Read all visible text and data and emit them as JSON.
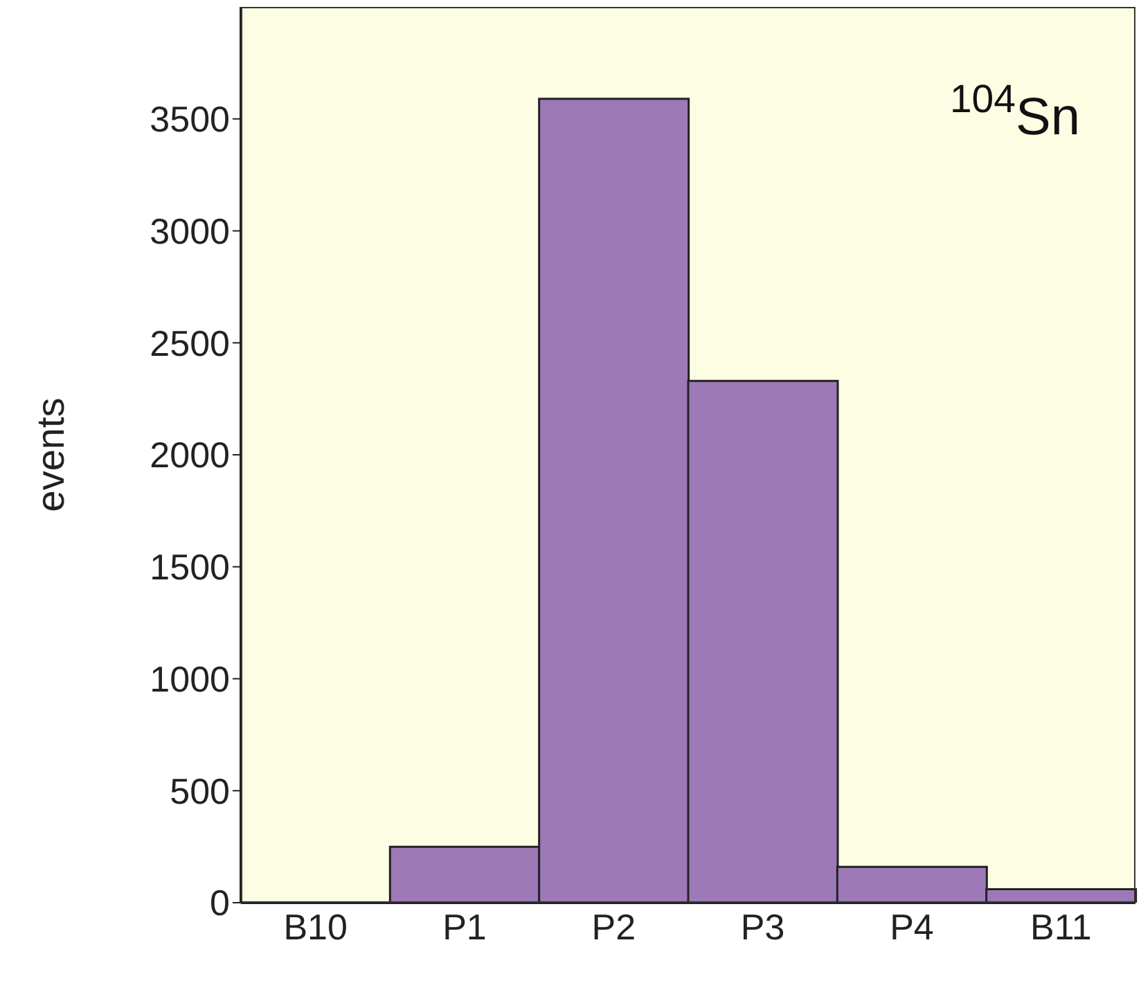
{
  "chart_data": {
    "type": "bar",
    "ylabel": "events",
    "categories": [
      "B10",
      "P1",
      "P2",
      "P3",
      "P4",
      "B11"
    ],
    "values": [
      0,
      250,
      3590,
      2330,
      160,
      60
    ],
    "color": "#9e79b7",
    "ylim": [
      0,
      4000
    ],
    "yticks": [
      0,
      500,
      1000,
      1500,
      2000,
      2500,
      3000,
      3500
    ],
    "annotations": [
      "$^{104}$Sn"
    ]
  }
}
